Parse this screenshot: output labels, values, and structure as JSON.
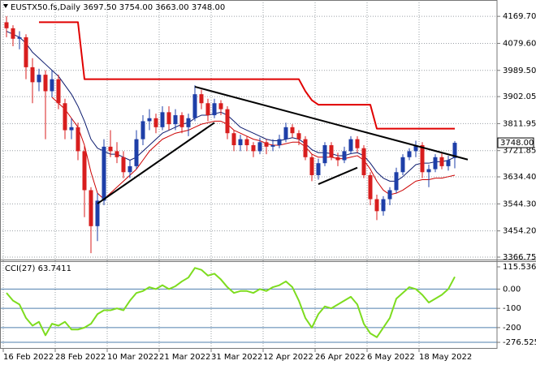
{
  "chart_data": [
    {
      "type": "candlestick",
      "title": "EUSTX50.fs,Daily 3697.50 3754.00 3663.00 3748.00",
      "categories": [
        "16 Feb 2022",
        null,
        null,
        null,
        null,
        null,
        null,
        null,
        "28 Feb 2022",
        null,
        null,
        null,
        null,
        null,
        null,
        null,
        "10 Mar 2022",
        null,
        null,
        null,
        null,
        null,
        null,
        null,
        "21 Mar 2022",
        null,
        null,
        null,
        null,
        null,
        null,
        null,
        "31 Mar 2022",
        null,
        null,
        null,
        null,
        null,
        null,
        null,
        "12 Apr 2022",
        null,
        null,
        null,
        null,
        null,
        null,
        null,
        "26 Apr 2022",
        null,
        null,
        null,
        null,
        null,
        null,
        null,
        "6 May 2022",
        null,
        null,
        null,
        null,
        null,
        null,
        null,
        "18 May 2022",
        null,
        null,
        null,
        null,
        null
      ],
      "open": [
        4150,
        4130,
        4095,
        4100,
        4000,
        3950,
        3975,
        3920,
        3960,
        3880,
        3790,
        3800,
        3720,
        3590,
        3470,
        3555,
        3735,
        3720,
        3700,
        3650,
        3670,
        3760,
        3820,
        3830,
        3800,
        3850,
        3810,
        3840,
        3800,
        3830,
        3910,
        3880,
        3840,
        3880,
        3860,
        3780,
        3740,
        3760,
        3740,
        3720,
        3750,
        3735,
        3740,
        3760,
        3800,
        3780,
        3760,
        3700,
        3640,
        3680,
        3740,
        3700,
        3690,
        3720,
        3760,
        3730,
        3640,
        3560,
        3520,
        3560,
        3590,
        3650,
        3700,
        3720,
        3740,
        3650,
        3660,
        3700,
        3670,
        3697.5
      ],
      "high": [
        4170,
        4140,
        4120,
        4110,
        4030,
        3995,
        3990,
        3990,
        3975,
        3895,
        3830,
        3815,
        3740,
        3600,
        3580,
        3760,
        3790,
        3750,
        3720,
        3690,
        3790,
        3840,
        3860,
        3845,
        3870,
        3870,
        3860,
        3850,
        3845,
        3940,
        3925,
        3895,
        3895,
        3890,
        3870,
        3790,
        3775,
        3770,
        3750,
        3765,
        3760,
        3760,
        3775,
        3815,
        3810,
        3790,
        3770,
        3710,
        3695,
        3750,
        3750,
        3715,
        3735,
        3770,
        3770,
        3740,
        3650,
        3575,
        3570,
        3600,
        3665,
        3710,
        3730,
        3755,
        3750,
        3675,
        3710,
        3715,
        3705,
        3754
      ],
      "low": [
        4100,
        4070,
        4060,
        3960,
        3880,
        3920,
        3760,
        3900,
        3860,
        3760,
        3760,
        3690,
        3500,
        3380,
        3420,
        3540,
        3700,
        3680,
        3630,
        3630,
        3660,
        3740,
        3790,
        3780,
        3790,
        3790,
        3790,
        3780,
        3770,
        3820,
        3860,
        3820,
        3830,
        3840,
        3760,
        3720,
        3720,
        3720,
        3700,
        3710,
        3710,
        3720,
        3730,
        3750,
        3765,
        3740,
        3690,
        3620,
        3625,
        3670,
        3690,
        3670,
        3680,
        3710,
        3715,
        3630,
        3540,
        3490,
        3505,
        3540,
        3580,
        3640,
        3690,
        3700,
        3630,
        3600,
        3650,
        3660,
        3655,
        3663
      ],
      "close": [
        4130,
        4095,
        4100,
        4000,
        3950,
        3975,
        3920,
        3960,
        3880,
        3790,
        3800,
        3720,
        3590,
        3470,
        3555,
        3735,
        3720,
        3700,
        3650,
        3670,
        3760,
        3820,
        3830,
        3800,
        3850,
        3810,
        3840,
        3800,
        3830,
        3910,
        3880,
        3840,
        3880,
        3860,
        3780,
        3740,
        3760,
        3740,
        3720,
        3750,
        3735,
        3740,
        3760,
        3800,
        3780,
        3760,
        3700,
        3640,
        3680,
        3740,
        3700,
        3690,
        3720,
        3760,
        3730,
        3640,
        3560,
        3520,
        3560,
        3590,
        3650,
        3700,
        3720,
        3740,
        3650,
        3660,
        3700,
        3670,
        3690,
        3748
      ],
      "up_color": "#1e3fa8",
      "down_color": "#d81e1e",
      "lines": [
        {
          "color": "#0b1a6e",
          "width": 1,
          "values": [
            4120,
            4110,
            4100,
            4080,
            4050,
            4030,
            4010,
            3990,
            3970,
            3940,
            3910,
            3870,
            3820,
            3760,
            3730,
            3720,
            3710,
            3710,
            3700,
            3690,
            3700,
            3720,
            3740,
            3760,
            3780,
            3790,
            3800,
            3810,
            3815,
            3830,
            3840,
            3840,
            3845,
            3850,
            3840,
            3820,
            3800,
            3790,
            3780,
            3770,
            3760,
            3755,
            3755,
            3760,
            3765,
            3760,
            3745,
            3725,
            3715,
            3715,
            3712,
            3705,
            3705,
            3712,
            3715,
            3705,
            3680,
            3650,
            3630,
            3620,
            3620,
            3635,
            3655,
            3675,
            3680,
            3680,
            3685,
            3685,
            3690,
            3700
          ]
        },
        {
          "color": "#cc0000",
          "width": 1,
          "values": [
            null,
            null,
            null,
            null,
            null,
            null,
            null,
            3900,
            3880,
            3860,
            3830,
            3800,
            3740,
            3650,
            3580,
            3560,
            3580,
            3600,
            3620,
            3640,
            3660,
            3690,
            3720,
            3740,
            3760,
            3770,
            3780,
            3785,
            3790,
            3800,
            3810,
            3815,
            3820,
            3820,
            3810,
            3790,
            3780,
            3770,
            3760,
            3755,
            3745,
            3740,
            3740,
            3745,
            3750,
            3750,
            3735,
            3710,
            3700,
            3700,
            3700,
            3695,
            3695,
            3700,
            3705,
            3690,
            3660,
            3620,
            3590,
            3575,
            3580,
            3590,
            3605,
            3620,
            3625,
            3625,
            3630,
            3630,
            3635,
            3640
          ]
        },
        {
          "color": "#e00000",
          "width": 2,
          "values": [
            null,
            null,
            null,
            null,
            null,
            4150,
            4150,
            4150,
            4150,
            4150,
            4150,
            4150,
            3960,
            3960,
            3960,
            3960,
            3960,
            3960,
            3960,
            3960,
            3960,
            3960,
            3960,
            3960,
            3960,
            3960,
            3960,
            3960,
            3960,
            3960,
            3960,
            3960,
            3960,
            3960,
            3960,
            3960,
            3960,
            3960,
            3960,
            3960,
            3960,
            3960,
            3960,
            3960,
            3960,
            3960,
            3920,
            3890,
            3875,
            3875,
            3875,
            3875,
            3875,
            3875,
            3875,
            3875,
            3875,
            3795,
            3795,
            3795,
            3795,
            3795,
            3795,
            3795,
            3795,
            3795,
            3795,
            3795,
            3795,
            3795
          ]
        }
      ],
      "trendlines": {
        "color": "#000000",
        "segments": [
          {
            "x": [
              29,
              71
            ],
            "y": [
              3935,
              3692
            ]
          },
          {
            "x": [
              14,
              32
            ],
            "y": [
              3545,
              3815
            ]
          },
          {
            "x": [
              48,
              54
            ],
            "y": [
              3610,
              3665
            ]
          }
        ]
      },
      "price_marker": {
        "value": 3748,
        "label": "3748.00"
      },
      "ylim": [
        3358.6,
        4218.8
      ],
      "yticks": [
        {
          "value": 4169.7,
          "label": "4169.70"
        },
        {
          "value": 4079.6,
          "label": "4079.60"
        },
        {
          "value": 3989.5,
          "label": "3989.50"
        },
        3902.05,
        3811.95,
        3721.85,
        {
          "value": 3634.4,
          "label": "3634.40"
        },
        {
          "value": 3544.3,
          "label": "3544.30"
        },
        {
          "value": 3454.2,
          "label": "3454.20"
        },
        3366.75
      ],
      "grid": true
    },
    {
      "type": "line",
      "title": "CCI(27) 63.7411",
      "color": "#7ddc1f",
      "values": [
        -20,
        -60,
        -80,
        -150,
        -190,
        -170,
        -240,
        -180,
        -190,
        -170,
        -210,
        -210,
        -200,
        -180,
        -130,
        -110,
        -110,
        -100,
        -110,
        -60,
        -20,
        -10,
        10,
        0,
        20,
        0,
        15,
        40,
        60,
        110,
        100,
        70,
        80,
        50,
        10,
        -20,
        -10,
        -10,
        -20,
        0,
        -10,
        10,
        20,
        40,
        10,
        -60,
        -150,
        -200,
        -130,
        -90,
        -100,
        -80,
        -60,
        -40,
        -80,
        -180,
        -230,
        -250,
        -200,
        -150,
        -50,
        -20,
        10,
        0,
        -30,
        -70,
        -50,
        -30,
        0,
        63.7411
      ],
      "ylim": [
        -310,
        145
      ],
      "yticks": [
        115.536,
        {
          "value": 0,
          "label": "0.00"
        },
        -100,
        -200,
        -276.5253
      ],
      "level_color": "#4f7fae"
    }
  ]
}
